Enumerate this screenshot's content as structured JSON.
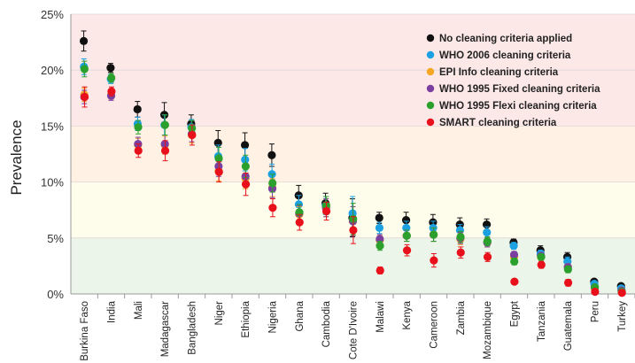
{
  "chart_data": {
    "type": "scatter",
    "ylabel": "Prevalence",
    "ylim": [
      0,
      25
    ],
    "yticks": [
      "0%",
      "5%",
      "10%",
      "15%",
      "20%",
      "25%"
    ],
    "bands": [
      {
        "from": 0,
        "to": 5,
        "color": "#ebf5e9"
      },
      {
        "from": 5,
        "to": 10,
        "color": "#fefcea"
      },
      {
        "from": 10,
        "to": 15,
        "color": "#fff2e5"
      },
      {
        "from": 15,
        "to": 25,
        "color": "#fde8e8"
      }
    ],
    "legend_position": "top-right",
    "categories": [
      "Burkina Faso",
      "India",
      "Mali",
      "Madagascar",
      "Bangladesh",
      "Niger",
      "Ethiopia",
      "Nigeria",
      "Ghana",
      "Cambodia",
      "Cote D'Ivoire",
      "Malawi",
      "Kenya",
      "Cameroon",
      "Zambia",
      "Mozambique",
      "Egypt",
      "Tanzania",
      "Guatemala",
      "Peru",
      "Turkey"
    ],
    "series": [
      {
        "name": "No cleaning criteria applied",
        "color": "#111111",
        "values": [
          22.6,
          20.2,
          16.5,
          16.0,
          15.2,
          13.5,
          13.3,
          12.4,
          8.8,
          8.1,
          6.8,
          6.8,
          6.6,
          6.4,
          6.2,
          6.2,
          4.6,
          3.9,
          3.3,
          1.1,
          0.7
        ],
        "errors": [
          0.9,
          0.4,
          0.7,
          1.1,
          0.8,
          1.1,
          1.1,
          1.0,
          0.9,
          0.9,
          1.7,
          0.5,
          0.7,
          0.7,
          0.6,
          0.5,
          0.3,
          0.4,
          0.4,
          0.2,
          0.1
        ]
      },
      {
        "name": "WHO 2006 cleaning criteria",
        "color": "#1ba1e2",
        "values": [
          20.3,
          19.2,
          15.2,
          15.1,
          14.9,
          12.3,
          12.0,
          10.7,
          8.0,
          7.9,
          7.2,
          5.9,
          5.9,
          5.9,
          5.7,
          5.5,
          4.3,
          3.6,
          2.9,
          0.9,
          0.5
        ],
        "errors": [
          0.7,
          0.4,
          0.6,
          0.9,
          0.7,
          1.0,
          1.0,
          0.9,
          0.8,
          0.8,
          1.5,
          0.5,
          0.6,
          0.6,
          0.5,
          0.5,
          0.3,
          0.3,
          0.4,
          0.2,
          0.1
        ]
      },
      {
        "name": "EPI Info cleaning criteria",
        "color": "#f5a623",
        "values": [
          17.8,
          17.8,
          13.3,
          13.3,
          14.2,
          11.0,
          10.3,
          9.5,
          7.1,
          7.7,
          6.5,
          4.8,
          5.2,
          5.3,
          4.9,
          4.6,
          3.3,
          3.3,
          2.4,
          0.5,
          0.3
        ],
        "errors": [
          0.6,
          0.4,
          0.6,
          0.8,
          0.7,
          0.9,
          0.9,
          0.8,
          0.7,
          0.8,
          1.3,
          0.4,
          0.5,
          0.6,
          0.5,
          0.4,
          0.3,
          0.3,
          0.3,
          0.1,
          0.1
        ]
      },
      {
        "name": "WHO 1995 Fixed cleaning criteria",
        "color": "#7b3fa0",
        "values": [
          17.6,
          17.7,
          13.4,
          13.4,
          14.3,
          11.4,
          10.5,
          9.4,
          7.2,
          7.7,
          6.5,
          4.9,
          5.2,
          5.3,
          5.0,
          4.6,
          3.5,
          3.4,
          2.4,
          0.6,
          0.3
        ],
        "errors": [
          0.6,
          0.4,
          0.6,
          0.8,
          0.7,
          0.9,
          0.9,
          0.8,
          0.7,
          0.8,
          1.3,
          0.4,
          0.5,
          0.6,
          0.5,
          0.4,
          0.3,
          0.3,
          0.3,
          0.1,
          0.1
        ]
      },
      {
        "name": "WHO 1995 Flexi cleaning criteria",
        "color": "#2ca02c",
        "values": [
          20.1,
          19.3,
          14.9,
          15.1,
          14.8,
          12.1,
          11.4,
          9.9,
          7.3,
          7.9,
          6.7,
          4.3,
          5.2,
          5.3,
          5.1,
          4.7,
          2.9,
          3.3,
          2.2,
          0.6,
          0.2
        ],
        "errors": [
          0.7,
          0.4,
          0.6,
          0.9,
          0.7,
          1.0,
          1.0,
          0.8,
          0.7,
          0.8,
          1.4,
          0.4,
          0.5,
          0.6,
          0.5,
          0.4,
          0.3,
          0.3,
          0.3,
          0.1,
          0.1
        ]
      },
      {
        "name": "SMART cleaning criteria",
        "color": "#e8101a",
        "values": [
          17.6,
          18.1,
          12.8,
          12.8,
          14.2,
          10.9,
          9.8,
          7.7,
          6.4,
          7.4,
          5.7,
          2.1,
          3.9,
          3.0,
          3.7,
          3.3,
          1.1,
          2.6,
          1.0,
          0.2,
          0.1
        ],
        "errors": [
          0.9,
          0.4,
          0.6,
          0.9,
          0.9,
          0.9,
          1.0,
          0.8,
          0.7,
          0.8,
          1.2,
          0.3,
          0.5,
          0.6,
          0.5,
          0.4,
          0.2,
          0.3,
          0.3,
          0.1,
          0.1
        ]
      }
    ]
  }
}
